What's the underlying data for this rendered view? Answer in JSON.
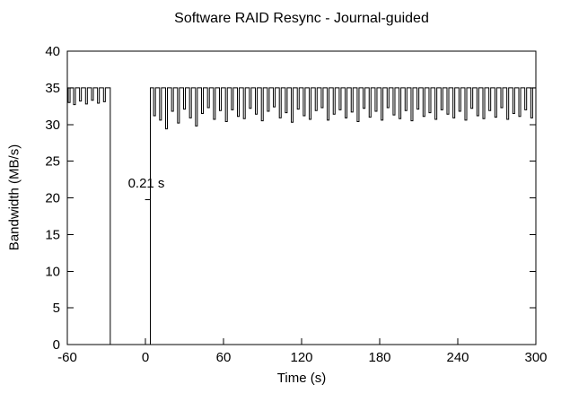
{
  "chart_data": {
    "type": "line",
    "title": "Software RAID Resync - Journal-guided",
    "xlabel": "Time (s)",
    "ylabel": "Bandwidth (MB/s)",
    "xlim": [
      -60,
      300
    ],
    "ylim": [
      0,
      40
    ],
    "xticks": [
      -60,
      0,
      60,
      120,
      180,
      240,
      300
    ],
    "yticks": [
      0,
      5,
      10,
      15,
      20,
      25,
      30,
      35,
      40
    ],
    "grid": false,
    "legend": "none",
    "colors": {
      "line": "#000000",
      "text": "#000000",
      "background": "#ffffff"
    },
    "annotation": {
      "text": "0.21 s",
      "x": 0.7,
      "y": 22.0,
      "marker_x": 1.8,
      "marker_y": 19.75
    },
    "series": {
      "dip_width_s": 1.4,
      "segments": [
        {
          "v": 35,
          "t0": -60,
          "t1": -27,
          "dips": [
            {
              "t": -58.6,
              "v": 33.0
            },
            {
              "t": -54.5,
              "v": 32.7
            },
            {
              "t": -49.9,
              "v": 33.2
            },
            {
              "t": -45.3,
              "v": 32.8
            },
            {
              "t": -40.7,
              "v": 33.3
            },
            {
              "t": -36.1,
              "v": 32.9
            },
            {
              "t": -31.5,
              "v": 33.1
            }
          ]
        },
        {
          "v": 0,
          "t0": -27,
          "t1": 3.8,
          "dips": []
        },
        {
          "v": 35,
          "t0": 3.8,
          "t1": 300,
          "dips": [
            {
              "t": 7.0,
              "v": 31.2
            },
            {
              "t": 11.6,
              "v": 30.6
            },
            {
              "t": 16.2,
              "v": 29.4
            },
            {
              "t": 20.8,
              "v": 31.8
            },
            {
              "t": 25.4,
              "v": 30.2
            },
            {
              "t": 30.0,
              "v": 32.1
            },
            {
              "t": 34.6,
              "v": 30.9
            },
            {
              "t": 39.2,
              "v": 29.8
            },
            {
              "t": 43.8,
              "v": 31.5
            },
            {
              "t": 48.4,
              "v": 32.3
            },
            {
              "t": 53.0,
              "v": 30.7
            },
            {
              "t": 57.6,
              "v": 31.9
            },
            {
              "t": 62.2,
              "v": 30.4
            },
            {
              "t": 66.8,
              "v": 32.0
            },
            {
              "t": 71.4,
              "v": 31.1
            },
            {
              "t": 76.0,
              "v": 30.8
            },
            {
              "t": 80.6,
              "v": 32.2
            },
            {
              "t": 85.2,
              "v": 31.4
            },
            {
              "t": 89.8,
              "v": 30.5
            },
            {
              "t": 94.4,
              "v": 31.8
            },
            {
              "t": 99.0,
              "v": 32.4
            },
            {
              "t": 103.6,
              "v": 30.9
            },
            {
              "t": 108.2,
              "v": 31.6
            },
            {
              "t": 112.8,
              "v": 30.3
            },
            {
              "t": 117.4,
              "v": 32.1
            },
            {
              "t": 122.0,
              "v": 31.2
            },
            {
              "t": 126.6,
              "v": 30.7
            },
            {
              "t": 131.2,
              "v": 31.9
            },
            {
              "t": 135.8,
              "v": 32.3
            },
            {
              "t": 140.4,
              "v": 30.6
            },
            {
              "t": 145.0,
              "v": 31.4
            },
            {
              "t": 149.6,
              "v": 32.0
            },
            {
              "t": 154.2,
              "v": 30.9
            },
            {
              "t": 158.8,
              "v": 31.7
            },
            {
              "t": 163.4,
              "v": 30.4
            },
            {
              "t": 168.0,
              "v": 32.2
            },
            {
              "t": 172.6,
              "v": 31.0
            },
            {
              "t": 177.2,
              "v": 31.8
            },
            {
              "t": 181.8,
              "v": 30.6
            },
            {
              "t": 186.4,
              "v": 32.3
            },
            {
              "t": 191.0,
              "v": 31.3
            },
            {
              "t": 195.6,
              "v": 30.8
            },
            {
              "t": 200.2,
              "v": 31.9
            },
            {
              "t": 204.8,
              "v": 30.5
            },
            {
              "t": 209.4,
              "v": 32.1
            },
            {
              "t": 214.0,
              "v": 31.1
            },
            {
              "t": 218.6,
              "v": 31.6
            },
            {
              "t": 223.2,
              "v": 30.7
            },
            {
              "t": 227.8,
              "v": 32.0
            },
            {
              "t": 232.4,
              "v": 31.4
            },
            {
              "t": 237.0,
              "v": 30.9
            },
            {
              "t": 241.6,
              "v": 31.8
            },
            {
              "t": 246.2,
              "v": 30.6
            },
            {
              "t": 250.8,
              "v": 32.2
            },
            {
              "t": 255.4,
              "v": 31.2
            },
            {
              "t": 260.0,
              "v": 30.8
            },
            {
              "t": 264.6,
              "v": 31.9
            },
            {
              "t": 269.2,
              "v": 31.0
            },
            {
              "t": 273.8,
              "v": 32.3
            },
            {
              "t": 278.4,
              "v": 30.7
            },
            {
              "t": 283.0,
              "v": 31.5
            },
            {
              "t": 287.6,
              "v": 31.1
            },
            {
              "t": 292.2,
              "v": 32.0
            },
            {
              "t": 296.8,
              "v": 30.9
            }
          ]
        }
      ]
    }
  }
}
